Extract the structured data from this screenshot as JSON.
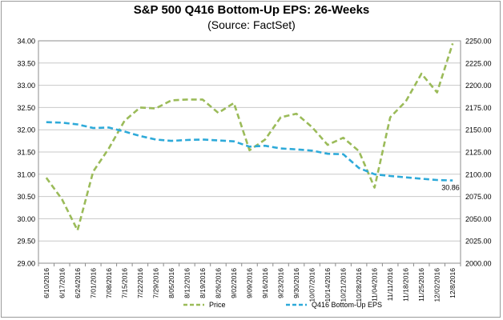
{
  "chart_data": {
    "type": "line",
    "title": "S&P 500 Q416 Bottom-Up EPS: 26-Weeks",
    "subtitle": "(Source: FactSet)",
    "categories": [
      "6/10/2016",
      "6/17/2016",
      "6/24/2016",
      "7/01/2016",
      "7/08/2016",
      "7/15/2016",
      "7/22/2016",
      "7/29/2016",
      "8/05/2016",
      "8/12/2016",
      "8/19/2016",
      "8/26/2016",
      "9/02/2016",
      "9/09/2016",
      "9/16/2016",
      "9/23/2016",
      "9/30/2016",
      "10/07/2016",
      "10/14/2016",
      "10/21/2016",
      "10/28/2016",
      "11/04/2016",
      "11/11/2016",
      "11/18/2016",
      "11/25/2016",
      "12/02/2016",
      "12/8/2016"
    ],
    "left_axis": {
      "min": 29.0,
      "max": 34.0,
      "ticks": [
        "29.00",
        "29.50",
        "30.00",
        "30.50",
        "31.00",
        "31.50",
        "32.00",
        "32.50",
        "33.00",
        "33.50",
        "34.00"
      ]
    },
    "right_axis": {
      "min": 2000,
      "max": 2250,
      "ticks": [
        "2000.00",
        "2025.00",
        "2050.00",
        "2075.00",
        "2100.00",
        "2125.00",
        "2150.00",
        "2175.00",
        "2200.00",
        "2225.00",
        "2250.00"
      ]
    },
    "series": [
      {
        "name": "Price",
        "axis": "right",
        "color": "#9bbb59",
        "values": [
          2096,
          2072,
          2037,
          2103,
          2129,
          2160,
          2175,
          2174,
          2183,
          2184,
          2184,
          2169,
          2180,
          2127,
          2139,
          2164,
          2168,
          2153,
          2133,
          2141,
          2126,
          2085,
          2164,
          2182,
          2213,
          2192,
          2247
        ]
      },
      {
        "name": "Q416 Bottom-Up EPS",
        "axis": "left",
        "color": "#2eaad9",
        "values": [
          32.17,
          32.16,
          32.12,
          32.04,
          32.05,
          31.96,
          31.86,
          31.78,
          31.75,
          31.77,
          31.78,
          31.76,
          31.74,
          31.62,
          31.64,
          31.58,
          31.56,
          31.53,
          31.46,
          31.45,
          31.14,
          31.0,
          30.96,
          30.93,
          30.9,
          30.87,
          30.86
        ]
      }
    ],
    "data_label": "30.86",
    "grid": true,
    "legend": "bottom"
  }
}
